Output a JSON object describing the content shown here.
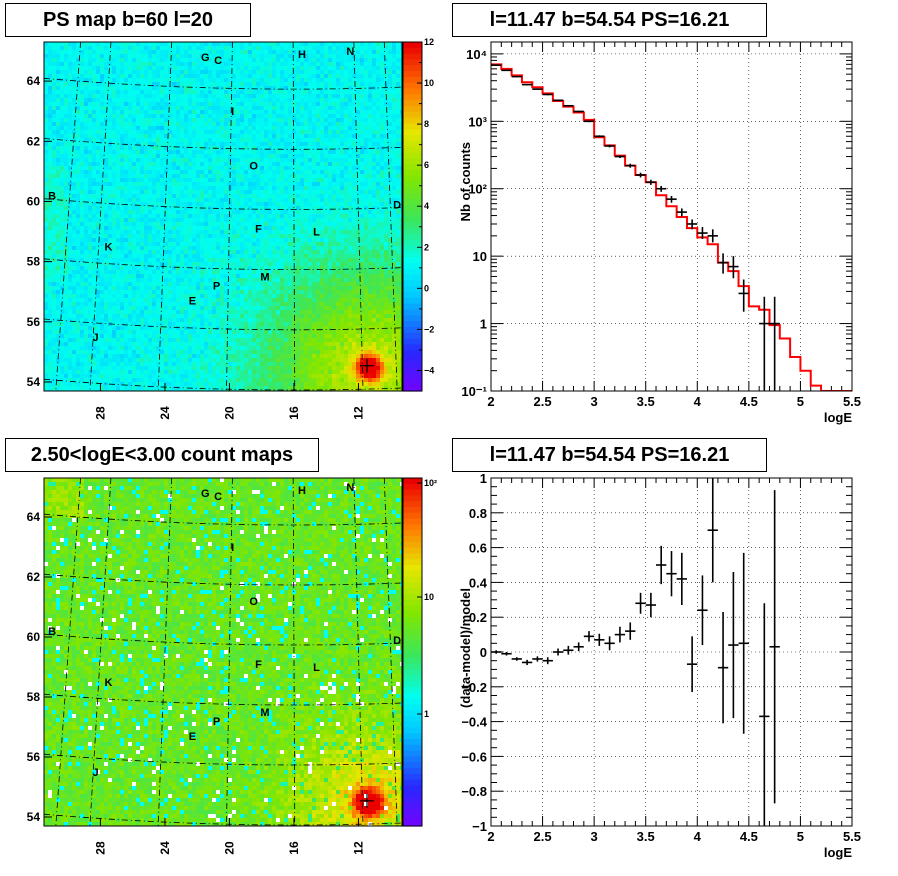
{
  "panels": {
    "map1_title": "PS map b=60 l=20",
    "spectrum_title": "l=11.47 b=54.54 PS=16.21",
    "map2_title": "2.50<logE<3.00 count maps",
    "residual_title": "l=11.47 b=54.54 PS=16.21"
  },
  "sky_map": {
    "lon_ticks": [
      "28",
      "24",
      "20",
      "16",
      "12"
    ],
    "lat_ticks": [
      "64",
      "62",
      "60",
      "58",
      "56",
      "54"
    ],
    "markers": [
      {
        "label": "G",
        "lon": 21.5,
        "lat": 64.8
      },
      {
        "label": "C",
        "lon": 20.7,
        "lat": 64.7
      },
      {
        "label": "H",
        "lon": 15.5,
        "lat": 64.9
      },
      {
        "label": "N",
        "lon": 12.5,
        "lat": 65.0
      },
      {
        "label": "I",
        "lon": 19.8,
        "lat": 63.0
      },
      {
        "label": "O",
        "lon": 18.5,
        "lat": 61.2
      },
      {
        "label": "B",
        "lon": 31.0,
        "lat": 60.2
      },
      {
        "label": "D",
        "lon": 9.6,
        "lat": 59.9
      },
      {
        "label": "F",
        "lon": 18.2,
        "lat": 59.1
      },
      {
        "label": "L",
        "lon": 14.6,
        "lat": 59.0
      },
      {
        "label": "K",
        "lon": 27.5,
        "lat": 58.5
      },
      {
        "label": "M",
        "lon": 17.8,
        "lat": 57.5
      },
      {
        "label": "P",
        "lon": 20.8,
        "lat": 57.2
      },
      {
        "label": "E",
        "lon": 22.3,
        "lat": 56.7
      },
      {
        "label": "J",
        "lon": 28.3,
        "lat": 55.5
      }
    ],
    "source": {
      "lon": 11.47,
      "lat": 54.54
    }
  },
  "colorbar1": {
    "labels": [
      "12",
      "10",
      "8",
      "6",
      "4",
      "2",
      "0",
      "−2",
      "−4"
    ]
  },
  "colorbar2": {
    "labels": [
      "10²",
      "10",
      "1"
    ]
  },
  "chart_data": [
    {
      "type": "line",
      "title": "l=11.47 b=54.54 PS=16.21",
      "xlabel": "logE",
      "ylabel": "Nb of counts",
      "xlim": [
        2,
        5.5
      ],
      "ylim": [
        0.1,
        15000
      ],
      "yscale": "log",
      "grid": true,
      "x_ticks": [
        "2",
        "2.5",
        "3",
        "3.5",
        "4",
        "4.5",
        "5",
        "5.5"
      ],
      "y_ticks": [
        "10⁻¹",
        "1",
        "10",
        "10²",
        "10³",
        "10⁴"
      ],
      "model": {
        "edges": [
          2.0,
          2.1,
          2.2,
          2.3,
          2.4,
          2.5,
          2.6,
          2.7,
          2.8,
          2.9,
          3.0,
          3.1,
          3.2,
          3.3,
          3.4,
          3.5,
          3.6,
          3.7,
          3.8,
          3.9,
          4.0,
          4.1,
          4.2,
          4.3,
          4.4,
          4.5,
          4.6,
          4.7,
          4.8,
          4.9,
          5.0,
          5.1,
          5.2,
          5.3,
          5.4,
          5.5
        ],
        "values": [
          7000,
          6000,
          4800,
          3800,
          3200,
          2600,
          2000,
          1650,
          1350,
          1050,
          580,
          440,
          310,
          220,
          160,
          125,
          80,
          55,
          38,
          26,
          19,
          15,
          8,
          6,
          3.6,
          1.8,
          1.6,
          0.95,
          0.6,
          0.32,
          0.2,
          0.12,
          0.1,
          0.1,
          0.1
        ]
      },
      "data": {
        "x": [
          2.05,
          2.15,
          2.25,
          2.35,
          2.45,
          2.55,
          2.65,
          2.75,
          2.85,
          2.95,
          3.05,
          3.15,
          3.25,
          3.35,
          3.45,
          3.55,
          3.65,
          3.75,
          3.85,
          3.95,
          4.05,
          4.15,
          4.25,
          4.35,
          4.45,
          4.55,
          4.65,
          4.75
        ],
        "y": [
          6800,
          5700,
          4600,
          3500,
          3000,
          2500,
          2050,
          1700,
          1400,
          1000,
          600,
          430,
          300,
          220,
          160,
          125,
          100,
          70,
          45,
          30,
          22,
          20,
          8,
          7,
          2.8,
          0,
          1.0,
          1.0
        ],
        "ylo": [
          6700,
          5600,
          4500,
          3420,
          2930,
          2430,
          2000,
          1660,
          1360,
          970,
          580,
          410,
          285,
          205,
          147,
          114,
          90,
          62,
          39,
          25,
          18,
          16,
          5.5,
          4.7,
          1.5,
          0,
          0.1,
          0.1
        ],
        "yhi": [
          6900,
          5800,
          4700,
          3580,
          3070,
          2570,
          2100,
          1740,
          1440,
          1030,
          620,
          450,
          315,
          235,
          173,
          136,
          110,
          78,
          51,
          35,
          27,
          25,
          11,
          10,
          4.5,
          0,
          2.5,
          2.5
        ]
      }
    },
    {
      "type": "scatter",
      "title": "l=11.47 b=54.54 PS=16.21",
      "xlabel": "logE",
      "ylabel": "(data-model)/model",
      "xlim": [
        2,
        5.5
      ],
      "ylim": [
        -1,
        1
      ],
      "grid": true,
      "x_ticks": [
        "2",
        "2.5",
        "3",
        "3.5",
        "4",
        "4.5",
        "5",
        "5.5"
      ],
      "y_ticks": [
        "−1",
        "−0.8",
        "−0.6",
        "−0.4",
        "−0.2",
        "0",
        "0.2",
        "0.4",
        "0.6",
        "0.8",
        "1"
      ],
      "data": {
        "x": [
          2.05,
          2.15,
          2.25,
          2.35,
          2.45,
          2.55,
          2.65,
          2.75,
          2.85,
          2.95,
          3.05,
          3.15,
          3.25,
          3.35,
          3.45,
          3.55,
          3.65,
          3.75,
          3.85,
          3.95,
          4.05,
          4.15,
          4.25,
          4.35,
          4.45,
          4.65,
          4.75
        ],
        "y": [
          0.0,
          -0.01,
          -0.04,
          -0.06,
          -0.04,
          -0.05,
          0.0,
          0.01,
          0.03,
          0.09,
          0.07,
          0.05,
          0.1,
          0.12,
          0.28,
          0.27,
          0.5,
          0.45,
          0.42,
          -0.07,
          0.24,
          0.7,
          -0.09,
          0.04,
          0.05,
          -0.37,
          0.03
        ],
        "err": [
          0.01,
          0.01,
          0.01,
          0.015,
          0.015,
          0.02,
          0.02,
          0.025,
          0.025,
          0.03,
          0.035,
          0.04,
          0.045,
          0.05,
          0.06,
          0.07,
          0.11,
          0.13,
          0.15,
          0.16,
          0.2,
          0.3,
          0.32,
          0.42,
          0.52,
          0.65,
          0.9
        ]
      }
    }
  ]
}
